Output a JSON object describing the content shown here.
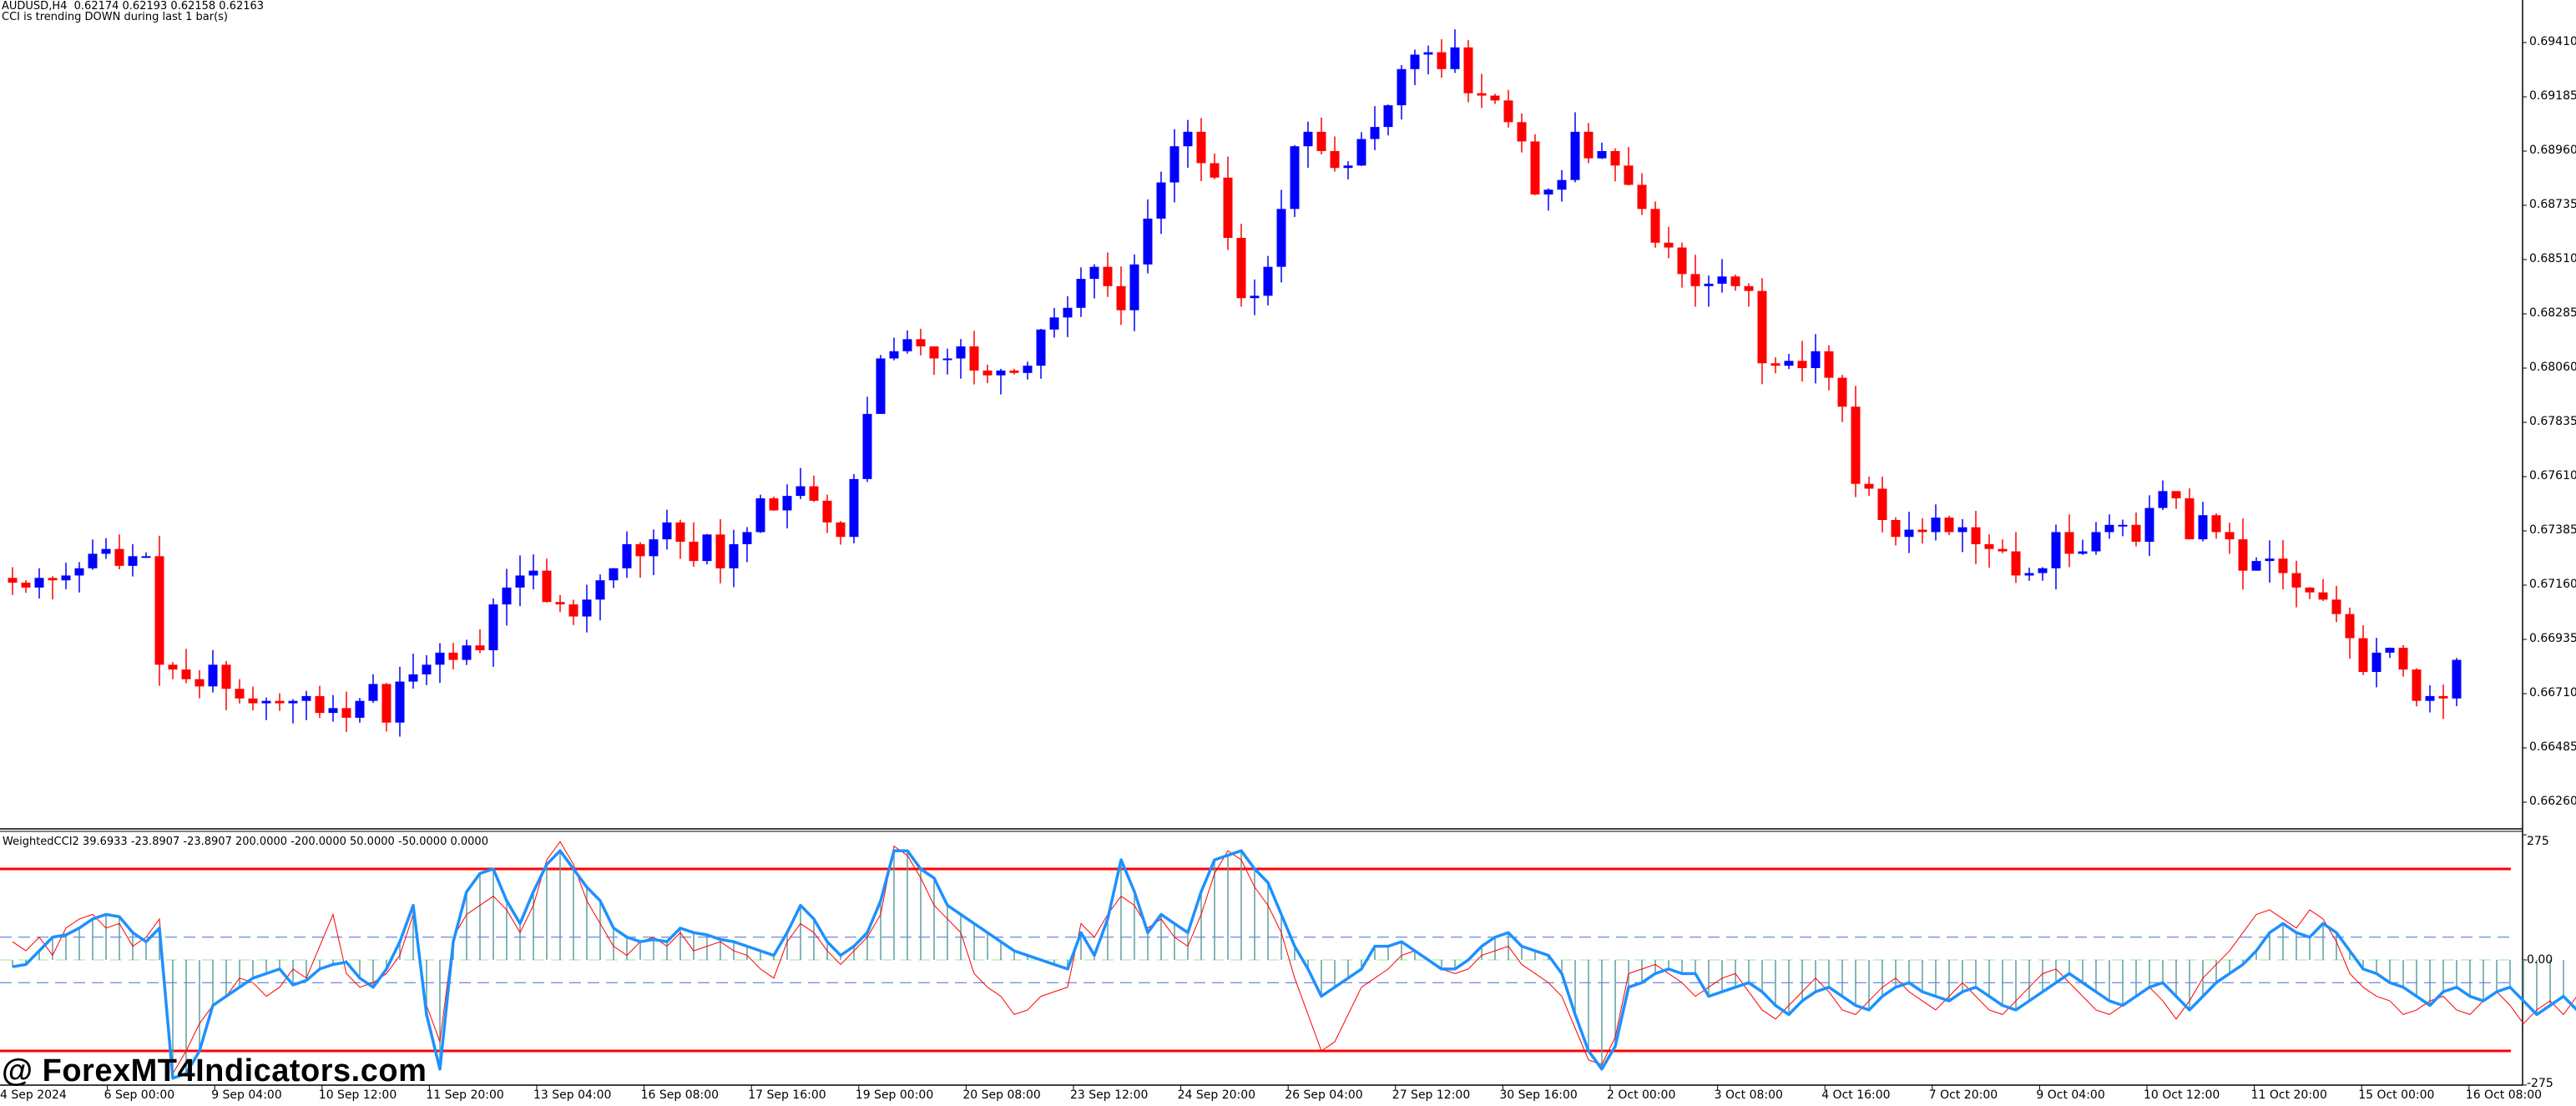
{
  "header": {
    "symbol_line": "AUDUSD,H4  0.62174 0.62193 0.62158 0.62163",
    "status_line": "CCI is trending DOWN during last 1 bar(s)"
  },
  "indicator": {
    "title": "WeightedCCI2 39.6933 -23.8907 -23.8907 200.0000 -200.0000 50.0000 -50.0000 0.0000",
    "axis_labels": [
      "275",
      "0.00",
      "-275"
    ],
    "levels": {
      "upper": 200,
      "lower": -200,
      "mid_upper": 50,
      "mid_lower": -50,
      "zero": 0
    }
  },
  "watermark": "@ ForexMT4Indicators.com",
  "colors": {
    "bull": "#0000ff",
    "bear": "#ff0000",
    "cci_main": "#1e90ff",
    "cci_signal": "#ff0000",
    "histogram": "#5f9ea0",
    "level_200": "#ff0000",
    "level_50": "#4169e1",
    "level_zero": "#90ee90",
    "axis": "#000000"
  },
  "price_axis": {
    "labels": [
      "0.69410",
      "0.69185",
      "0.68960",
      "0.68735",
      "0.68510",
      "0.68285",
      "0.68060",
      "0.67835",
      "0.67610",
      "0.67385",
      "0.67160",
      "0.66935",
      "0.66710",
      "0.66485",
      "0.66260"
    ]
  },
  "time_axis": {
    "labels": [
      "4 Sep 2024",
      "6 Sep 00:00",
      "9 Sep 04:00",
      "10 Sep 12:00",
      "11 Sep 20:00",
      "13 Sep 04:00",
      "16 Sep 08:00",
      "17 Sep 16:00",
      "19 Sep 00:00",
      "20 Sep 08:00",
      "23 Sep 12:00",
      "24 Sep 20:00",
      "26 Sep 04:00",
      "27 Sep 12:00",
      "30 Sep 16:00",
      "2 Oct 00:00",
      "3 Oct 08:00",
      "4 Oct 16:00",
      "7 Oct 20:00",
      "9 Oct 04:00",
      "10 Oct 12:00",
      "11 Oct 20:00",
      "15 Oct 00:00",
      "16 Oct 08:00"
    ]
  },
  "chart_data": {
    "type": "candlestick",
    "title": "AUDUSD,H4",
    "ylim": [
      0.6615,
      0.6955
    ],
    "candles_close_path": [
      0.6717,
      0.6715,
      0.6719,
      0.6718,
      0.672,
      0.6723,
      0.6729,
      0.6731,
      0.6724,
      0.6728,
      0.6728,
      0.6683,
      0.6681,
      0.6677,
      0.6674,
      0.6683,
      0.6673,
      0.6669,
      0.6667,
      0.6668,
      0.6667,
      0.6668,
      0.667,
      0.6663,
      0.6665,
      0.6661,
      0.6668,
      0.6675,
      0.6659,
      0.6676,
      0.6679,
      0.6683,
      0.6688,
      0.6685,
      0.6691,
      0.6689,
      0.6708,
      0.6715,
      0.672,
      0.6722,
      0.6709,
      0.6708,
      0.6703,
      0.671,
      0.6718,
      0.6723,
      0.6733,
      0.6728,
      0.6735,
      0.6742,
      0.6734,
      0.6726,
      0.6737,
      0.6723,
      0.6733,
      0.6738,
      0.6752,
      0.6747,
      0.6753,
      0.6757,
      0.6751,
      0.6742,
      0.6736,
      0.676,
      0.6787,
      0.681,
      0.6813,
      0.6818,
      0.6815,
      0.681,
      0.681,
      0.6815,
      0.6805,
      0.6803,
      0.6805,
      0.6804,
      0.6807,
      0.6822,
      0.6827,
      0.6831,
      0.6843,
      0.6848,
      0.684,
      0.683,
      0.6849,
      0.6868,
      0.6883,
      0.6898,
      0.6904,
      0.6891,
      0.6885,
      0.686,
      0.6835,
      0.6836,
      0.6848,
      0.6872,
      0.6898,
      0.6904,
      0.6896,
      0.6889,
      0.689,
      0.6901,
      0.6906,
      0.6915,
      0.693,
      0.6936,
      0.6937,
      0.693,
      0.6939,
      0.692,
      0.6919,
      0.6917,
      0.6908,
      0.69,
      0.6878,
      0.688,
      0.6884,
      0.6904,
      0.6893,
      0.6896,
      0.689,
      0.6882,
      0.6872,
      0.6858,
      0.6856,
      0.6845,
      0.684,
      0.6841,
      0.6844,
      0.684,
      0.6838,
      0.6808,
      0.6807,
      0.6809,
      0.6806,
      0.6813,
      0.6802,
      0.679,
      0.6758,
      0.6756,
      0.6743,
      0.6736,
      0.6739,
      0.6738,
      0.6744,
      0.6738,
      0.674,
      0.6733,
      0.6731,
      0.673,
      0.672,
      0.6721,
      0.6723,
      0.6738,
      0.6729,
      0.673,
      0.6738,
      0.6741,
      0.6741,
      0.6734,
      0.6748,
      0.6755,
      0.6752,
      0.6735,
      0.6745,
      0.6738,
      0.6735,
      0.6722,
      0.6726,
      0.6727,
      0.6721,
      0.6715,
      0.6713,
      0.671,
      0.6704,
      0.6694,
      0.668,
      0.6688,
      0.669,
      0.6681,
      0.6668,
      0.667,
      0.6669,
      0.6685
    ],
    "cci_main_path": [
      -15,
      -10,
      20,
      50,
      55,
      70,
      90,
      100,
      95,
      60,
      40,
      70,
      -260,
      -250,
      -200,
      -100,
      -80,
      -60,
      -40,
      -30,
      -20,
      -55,
      -45,
      -20,
      -10,
      -5,
      -40,
      -60,
      -20,
      40,
      120,
      -120,
      -240,
      40,
      150,
      190,
      200,
      130,
      80,
      150,
      210,
      240,
      200,
      160,
      130,
      70,
      50,
      40,
      45,
      40,
      70,
      60,
      55,
      45,
      40,
      30,
      20,
      10,
      60,
      120,
      90,
      40,
      10,
      30,
      60,
      130,
      240,
      240,
      200,
      180,
      120,
      100,
      80,
      60,
      40,
      20,
      10,
      0,
      -10,
      -20,
      60,
      10,
      90,
      220,
      150,
      60,
      100,
      80,
      60,
      150,
      220,
      230,
      240,
      200,
      170,
      100,
      30,
      -20,
      -80,
      -60,
      -40,
      -20,
      30,
      30,
      40,
      20,
      0,
      -20,
      -20,
      0,
      30,
      50,
      60,
      30,
      20,
      10,
      -30,
      -120,
      -200,
      -240,
      -190,
      -60,
      -50,
      -30,
      -20,
      -30,
      -30,
      -80,
      -70,
      -60,
      -50,
      -70,
      -100,
      -120,
      -90,
      -70,
      -60,
      -80,
      -100,
      -110,
      -80,
      -60,
      -50,
      -70,
      -80,
      -90,
      -70,
      -60,
      -80,
      -100,
      -110,
      -90,
      -70,
      -50,
      -30,
      -50,
      -70,
      -90,
      -100,
      -80,
      -60,
      -50,
      -80,
      -110,
      -80,
      -50,
      -30,
      -10,
      20,
      60,
      80,
      60,
      50,
      80,
      60,
      20,
      -20,
      -30,
      -50,
      -60,
      -80,
      -100,
      -70,
      -60,
      -80,
      -90,
      -70,
      -60,
      -90,
      -120,
      -100,
      -80,
      -110,
      -70,
      -30
    ],
    "cci_signal_path": [
      40,
      20,
      50,
      10,
      70,
      90,
      100,
      70,
      80,
      30,
      50,
      90,
      -250,
      -200,
      -140,
      -100,
      -80,
      -40,
      -50,
      -80,
      -60,
      -20,
      -40,
      30,
      100,
      -30,
      -60,
      -50,
      -30,
      10,
      100,
      -100,
      -180,
      50,
      100,
      120,
      140,
      110,
      60,
      120,
      220,
      260,
      210,
      130,
      80,
      30,
      10,
      40,
      50,
      30,
      60,
      20,
      30,
      40,
      20,
      10,
      -20,
      -40,
      40,
      80,
      60,
      20,
      -10,
      20,
      50,
      100,
      250,
      230,
      180,
      120,
      90,
      60,
      -30,
      -60,
      -80,
      -120,
      -110,
      -80,
      -70,
      -60,
      80,
      50,
      100,
      140,
      120,
      70,
      90,
      50,
      30,
      100,
      190,
      240,
      220,
      160,
      120,
      60,
      -40,
      -120,
      -200,
      -180,
      -120,
      -60,
      -40,
      -20,
      10,
      20,
      0,
      -20,
      -30,
      -20,
      10,
      20,
      30,
      -10,
      -30,
      -50,
      -80,
      -150,
      -220,
      -230,
      -170,
      -30,
      -20,
      -10,
      -30,
      -50,
      -80,
      -60,
      -40,
      -30,
      -70,
      -110,
      -130,
      -100,
      -70,
      -40,
      -70,
      -110,
      -120,
      -90,
      -60,
      -40,
      -70,
      -90,
      -110,
      -80,
      -50,
      -80,
      -110,
      -120,
      -90,
      -60,
      -30,
      -20,
      -50,
      -80,
      -110,
      -120,
      -100,
      -80,
      -60,
      -90,
      -130,
      -90,
      -40,
      -10,
      20,
      60,
      100,
      110,
      90,
      70,
      110,
      90,
      40,
      -30,
      -60,
      -80,
      -90,
      -120,
      -110,
      -90,
      -80,
      -110,
      -120,
      -90,
      -70,
      -100,
      -140,
      -110,
      -90,
      -120,
      -80,
      50
    ]
  }
}
